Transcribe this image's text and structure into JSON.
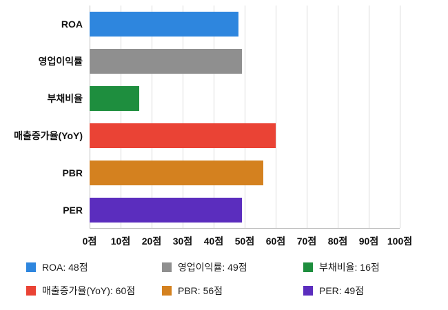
{
  "chart_data": {
    "type": "bar",
    "orientation": "horizontal",
    "title": "",
    "xlabel": "",
    "ylabel": "",
    "grid": true,
    "legend_position": "bottom",
    "categories": [
      "ROA",
      "영업이익률",
      "부채비율",
      "매출증가율(YoY)",
      "PBR",
      "PER"
    ],
    "values": [
      48,
      49,
      16,
      60,
      56,
      49
    ],
    "colors": [
      "#2E86DE",
      "#8F8F8F",
      "#1E8E3E",
      "#EA4335",
      "#D4811F",
      "#5B2DBE"
    ],
    "xlim": [
      0,
      100
    ],
    "x_tick_step": 10,
    "x_tick_labels": [
      "0점",
      "10점",
      "20점",
      "30점",
      "40점",
      "50점",
      "60점",
      "70점",
      "80점",
      "90점",
      "100점"
    ],
    "legend": [
      {
        "label": "ROA: 48점",
        "color": "#2E86DE"
      },
      {
        "label": "영업이익률: 49점",
        "color": "#8F8F8F"
      },
      {
        "label": "부채비율: 16점",
        "color": "#1E8E3E"
      },
      {
        "label": "매출증가율(YoY): 60점",
        "color": "#EA4335"
      },
      {
        "label": "PBR: 56점",
        "color": "#D4811F"
      },
      {
        "label": "PER: 49점",
        "color": "#5B2DBE"
      }
    ]
  }
}
